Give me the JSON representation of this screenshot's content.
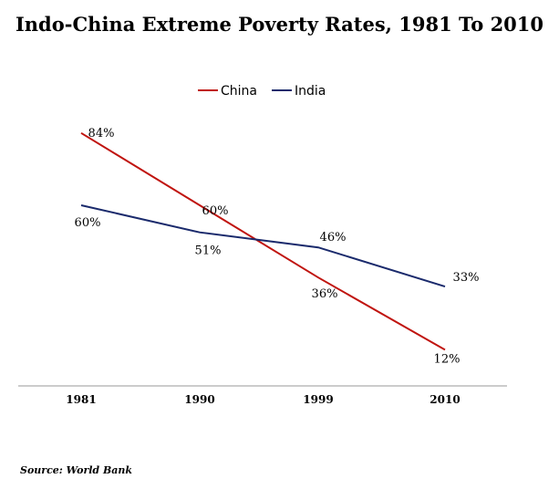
{
  "chart_data": {
    "type": "line",
    "title": "Indo-China Extreme Poverty Rates, 1981 To 2010",
    "categories": [
      "1981",
      "1990",
      "1999",
      "2010"
    ],
    "series": [
      {
        "name": "China",
        "color": "#c0140f",
        "values": [
          84,
          60,
          36,
          12
        ],
        "labels": [
          "84%",
          "60%",
          "36%",
          "12%"
        ]
      },
      {
        "name": "India",
        "color": "#1a2a6c",
        "values": [
          60,
          51,
          46,
          33
        ],
        "labels": [
          "60%",
          "51%",
          "46%",
          "33%"
        ]
      }
    ],
    "ylim": [
      0,
      100
    ],
    "grid": false,
    "legend_position": "top-center",
    "source": "Source: World Bank"
  }
}
